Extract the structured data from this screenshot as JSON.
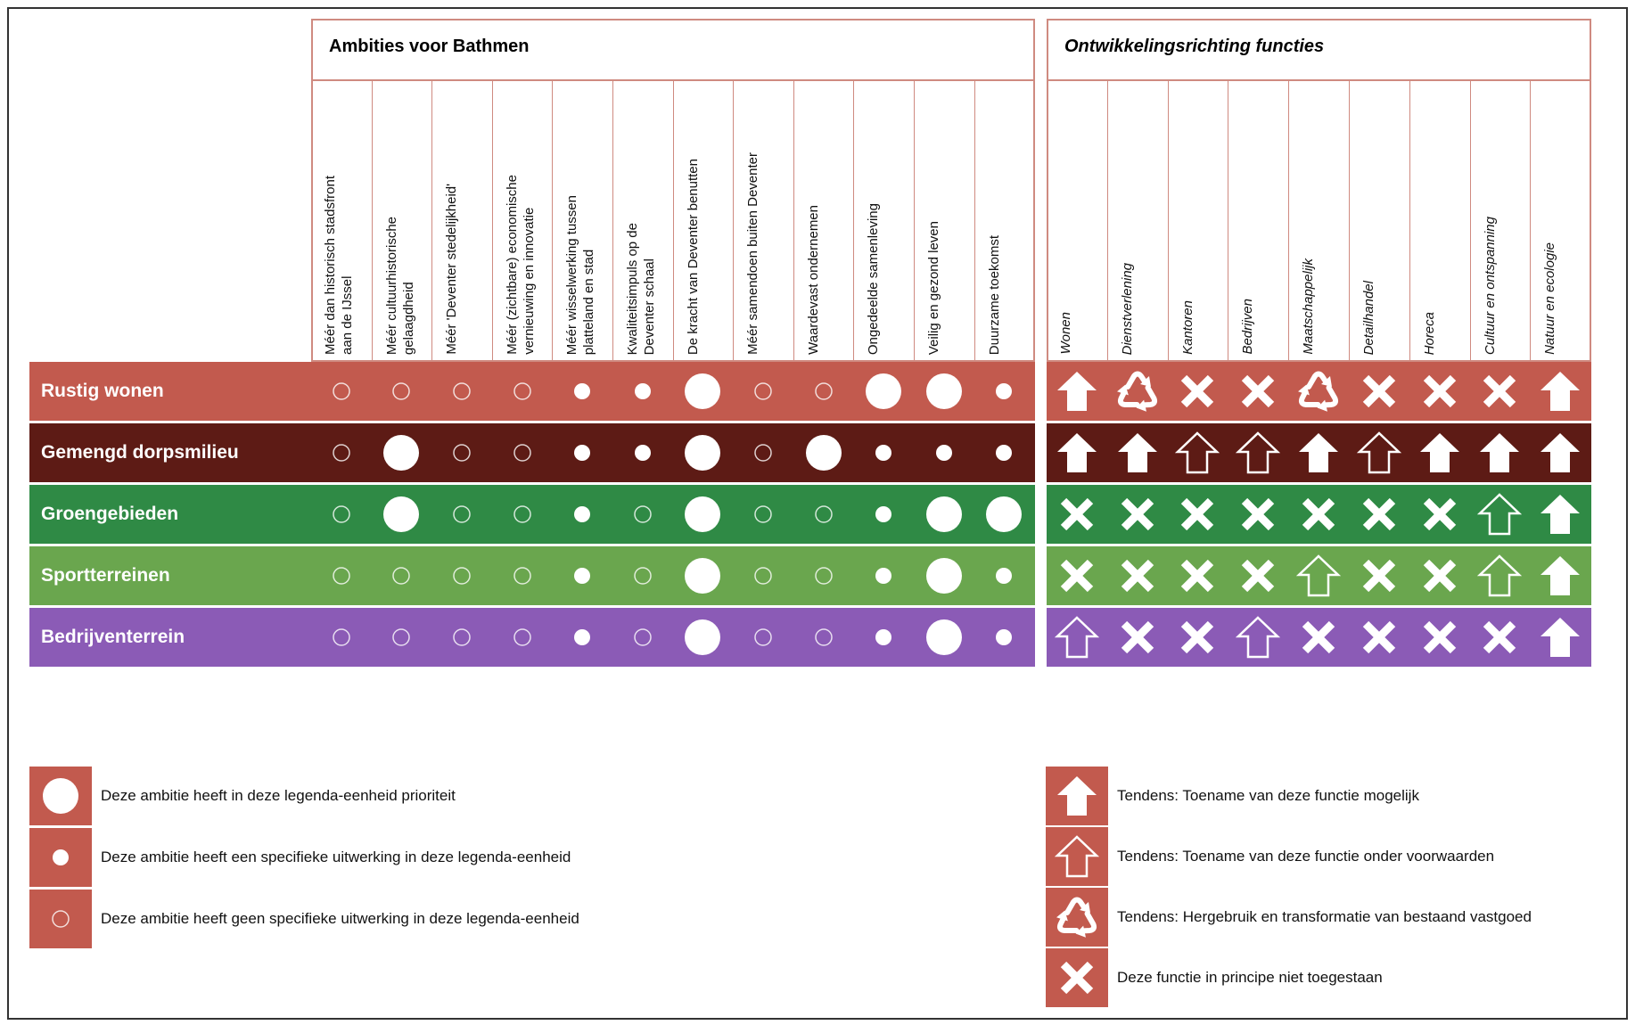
{
  "ambitions": {
    "title": "Ambities voor Bathmen",
    "columns": [
      "Méér dan historisch stadsfront\naan de IJssel",
      "Méér cultuurhistorische\ngelaagdheid",
      "Méér 'Deventer stedelijkheid'",
      "Méér (zichtbare) economische\nvernieuwing en innovatie",
      "Méér wisselwerking tussen\nplatteland en stad",
      "Kwaliteitsimpuls op de\nDeventer schaal",
      "De kracht van Deventer benutten",
      "Méér samendoen buiten Deventer",
      "Waardevast ondernemen",
      "Ongedeelde samenleving",
      "Veilig en gezond leven",
      "Duurzame toekomst"
    ]
  },
  "functions": {
    "title": "Ontwikkelingsrichting functies",
    "columns": [
      "Wonen",
      "Dienstverlening",
      "Kantoren",
      "Bedrijven",
      "Maatschappelijk",
      "Detailhandel",
      "Horeca",
      "Cultuur en ontspanning",
      "Natuur en ecologie"
    ]
  },
  "rows": [
    {
      "name": "Rustig wonen",
      "color": "#c25a4e",
      "ambitions": [
        2,
        2,
        2,
        2,
        1,
        1,
        0,
        2,
        2,
        0,
        0,
        1
      ],
      "functions": [
        0,
        2,
        3,
        3,
        2,
        3,
        3,
        3,
        0
      ]
    },
    {
      "name": "Gemengd dorpsmilieu",
      "color": "#5d1b15",
      "ambitions": [
        2,
        0,
        2,
        2,
        1,
        1,
        0,
        2,
        0,
        1,
        1,
        1
      ],
      "functions": [
        0,
        0,
        1,
        1,
        0,
        1,
        0,
        0,
        0
      ]
    },
    {
      "name": "Groengebieden",
      "color": "#2f8a45",
      "ambitions": [
        2,
        0,
        2,
        2,
        1,
        2,
        0,
        2,
        2,
        1,
        0,
        0
      ],
      "functions": [
        3,
        3,
        3,
        3,
        3,
        3,
        3,
        1,
        0
      ]
    },
    {
      "name": "Sportterreinen",
      "color": "#6aa64e",
      "ambitions": [
        2,
        2,
        2,
        2,
        1,
        2,
        0,
        2,
        2,
        1,
        0,
        1
      ],
      "functions": [
        3,
        3,
        3,
        3,
        1,
        3,
        3,
        1,
        0
      ]
    },
    {
      "name": "Bedrijventerrein",
      "color": "#8b5bb6",
      "ambitions": [
        2,
        2,
        2,
        2,
        1,
        2,
        0,
        2,
        2,
        1,
        0,
        1
      ],
      "functions": [
        1,
        3,
        3,
        1,
        3,
        3,
        3,
        3,
        0
      ]
    }
  ],
  "ambition_legend": [
    "Deze ambitie heeft in deze legenda-eenheid prioriteit",
    "Deze ambitie heeft een specifieke uitwerking in deze legenda-eenheid",
    "Deze ambitie heeft geen specifieke uitwerking in deze legenda-eenheid"
  ],
  "function_legend": [
    "Tendens: Toename van deze functie mogelijk",
    "Tendens: Toename van deze functie onder voorwaarden",
    "Tendens: Hergebruik en transformatie van bestaand vastgoed",
    "Deze functie in principe niet toegestaan"
  ],
  "legend_color": "#c25a4e"
}
